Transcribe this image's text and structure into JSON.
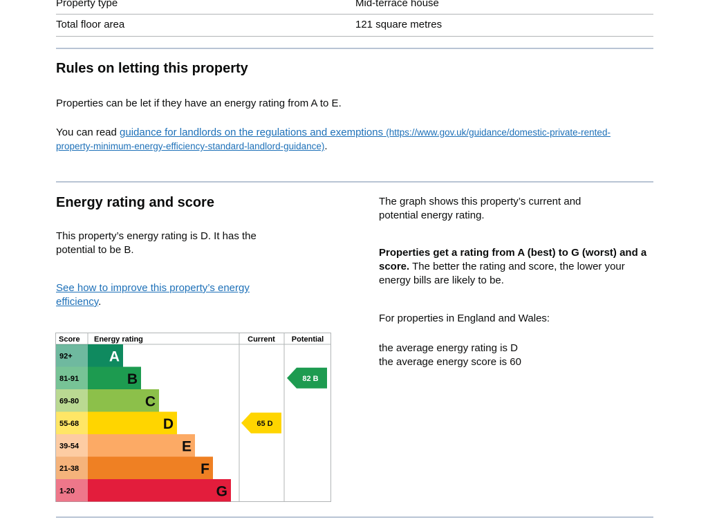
{
  "property_table": {
    "rows": [
      [
        "Property type",
        "Mid-terrace house"
      ],
      [
        "Total floor area",
        "121 square metres"
      ]
    ]
  },
  "letting": {
    "heading": "Rules on letting this property",
    "paragraph": "Properties can be let if they have an energy rating from A to E.",
    "guidance_prefix": "You can read ",
    "guidance_link": "guidance for landlords on the regulations and exemptions",
    "guidance_url": "(https://www.gov.uk/guidance/domestic-private-rented-property-minimum-energy-efficiency-standard-landlord-guidance)",
    "guidance_suffix": "."
  },
  "energy": {
    "heading": "Energy rating and score",
    "summary": "This property’s energy rating is D. It has the potential to be B.",
    "improve_link": "See how to improve this property’s energy efficiency",
    "improve_suffix": ".",
    "graph_note": "The graph shows this property’s current and potential energy rating.",
    "rating_bold": "Properties get a rating from A (best) to G (worst) and a score.",
    "rating_rest": " The better the rating and score, the lower your energy bills are likely to be.",
    "region_note": "For properties in England and Wales:",
    "average_rating": "the average energy rating is D",
    "average_score": "the average energy score is 60"
  },
  "chart": {
    "headers": {
      "score": "Score",
      "rating": "Energy rating",
      "current": "Current",
      "potential": "Potential"
    },
    "bands": [
      {
        "range": "92+",
        "letter": "A",
        "color": "#0f8a5f"
      },
      {
        "range": "81-91",
        "letter": "B",
        "color": "#1d9b50"
      },
      {
        "range": "69-80",
        "letter": "C",
        "color": "#8cc04a"
      },
      {
        "range": "55-68",
        "letter": "D",
        "color": "#ffd500"
      },
      {
        "range": "39-54",
        "letter": "E",
        "color": "#fcaa65"
      },
      {
        "range": "21-38",
        "letter": "F",
        "color": "#ef8023"
      },
      {
        "range": "1-20",
        "letter": "G",
        "color": "#e31d3c"
      }
    ],
    "current": {
      "score": 65,
      "rating": "D"
    },
    "potential": {
      "score": 82,
      "rating": "B"
    }
  }
}
